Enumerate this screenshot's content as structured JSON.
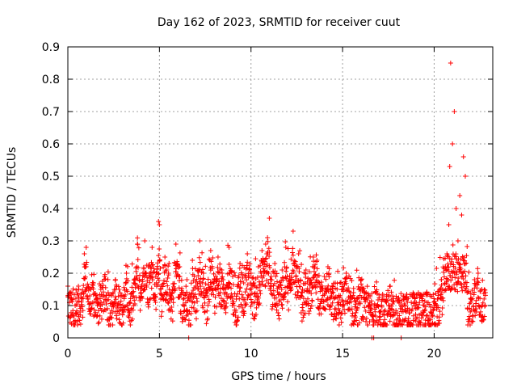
{
  "chart_data": {
    "type": "scatter",
    "title": "Day 162 of 2023, SRMTID for receiver cuut",
    "xlabel": "GPS time / hours",
    "ylabel": "SRMTID / TECUs",
    "xlim": [
      0,
      23.2
    ],
    "ylim": [
      0,
      0.9
    ],
    "x_ticks": [
      0,
      5,
      10,
      15,
      20
    ],
    "x_tick_labels": [
      "0",
      "5",
      "10",
      "15",
      "20"
    ],
    "y_ticks": [
      0,
      0.1,
      0.2,
      0.3,
      0.4,
      0.5,
      0.6,
      0.7,
      0.8,
      0.9
    ],
    "y_tick_labels": [
      "0",
      "0.1",
      "0.2",
      "0.3",
      "0.4",
      "0.5",
      "0.6",
      "0.7",
      "0.8",
      "0.9"
    ],
    "grid": true,
    "marker": "+",
    "series": [
      {
        "name": "SRMTID",
        "color": "#ff0000",
        "x": [
          0.0,
          0.2,
          0.4,
          0.6,
          0.8,
          0.9,
          1.0,
          1.2,
          1.4,
          1.6,
          1.8,
          2.0,
          2.2,
          2.4,
          2.6,
          2.8,
          3.0,
          3.2,
          3.4,
          3.6,
          3.8,
          4.0,
          4.2,
          4.4,
          4.6,
          4.8,
          4.95,
          5.0,
          5.1,
          5.3,
          5.5,
          5.7,
          5.9,
          6.1,
          6.3,
          6.5,
          6.6,
          6.8,
          7.0,
          7.2,
          7.4,
          7.6,
          7.8,
          8.0,
          8.2,
          8.4,
          8.6,
          8.8,
          9.0,
          9.2,
          9.4,
          9.6,
          9.8,
          10.0,
          10.2,
          10.4,
          10.6,
          10.8,
          10.9,
          11.0,
          11.1,
          11.3,
          11.5,
          11.7,
          11.9,
          12.1,
          12.3,
          12.5,
          12.6,
          12.8,
          13.0,
          13.2,
          13.4,
          13.6,
          13.8,
          14.0,
          14.2,
          14.4,
          14.6,
          14.8,
          15.0,
          15.2,
          15.4,
          15.6,
          15.8,
          16.0,
          16.2,
          16.4,
          16.6,
          16.7,
          16.8,
          17.0,
          17.2,
          17.4,
          17.6,
          17.8,
          18.0,
          18.2,
          18.4,
          18.6,
          18.8,
          19.0,
          19.2,
          19.4,
          19.6,
          19.8,
          20.0,
          20.2,
          20.4,
          20.6,
          20.7,
          20.8,
          20.85,
          20.9,
          21.0,
          21.1,
          21.2,
          21.3,
          21.4,
          21.5,
          21.6,
          21.7,
          21.8,
          22.0,
          22.2,
          22.4,
          22.6,
          22.8
        ],
        "y": [
          0.16,
          0.12,
          0.1,
          0.15,
          0.14,
          0.26,
          0.28,
          0.13,
          0.17,
          0.12,
          0.15,
          0.19,
          0.14,
          0.11,
          0.18,
          0.15,
          0.13,
          0.2,
          0.11,
          0.17,
          0.29,
          0.14,
          0.3,
          0.22,
          0.28,
          0.19,
          0.36,
          0.35,
          0.16,
          0.25,
          0.2,
          0.14,
          0.29,
          0.22,
          0.12,
          0.18,
          0.0,
          0.24,
          0.16,
          0.3,
          0.2,
          0.13,
          0.27,
          0.18,
          0.25,
          0.21,
          0.15,
          0.28,
          0.19,
          0.12,
          0.23,
          0.17,
          0.26,
          0.2,
          0.16,
          0.22,
          0.27,
          0.29,
          0.31,
          0.37,
          0.19,
          0.23,
          0.16,
          0.21,
          0.28,
          0.18,
          0.33,
          0.22,
          0.26,
          0.14,
          0.21,
          0.18,
          0.25,
          0.24,
          0.16,
          0.19,
          0.22,
          0.13,
          0.17,
          0.11,
          0.15,
          0.2,
          0.12,
          0.14,
          0.09,
          0.18,
          0.12,
          0.1,
          0.0,
          0.0,
          0.14,
          0.08,
          0.13,
          0.11,
          0.16,
          0.07,
          0.12,
          0.0,
          0.1,
          0.06,
          0.13,
          0.09,
          0.11,
          0.07,
          0.14,
          0.08,
          0.1,
          0.12,
          0.18,
          0.22,
          0.26,
          0.35,
          0.53,
          0.85,
          0.6,
          0.7,
          0.4,
          0.3,
          0.44,
          0.38,
          0.56,
          0.5,
          0.14,
          0.11,
          0.18,
          0.2,
          0.15,
          0.14
        ]
      }
    ]
  }
}
